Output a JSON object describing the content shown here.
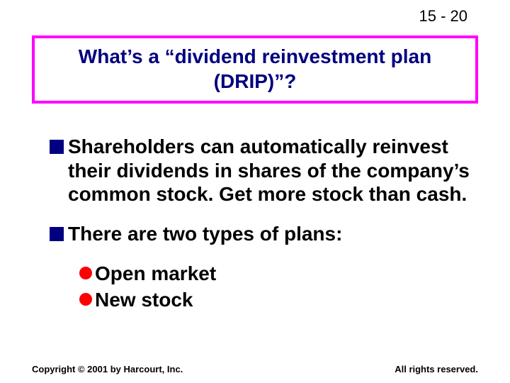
{
  "page_number": "15 - 20",
  "title_box": {
    "border_color": "#ff00ff",
    "text_color": "#000080",
    "line1": "What’s a “dividend reinvestment plan",
    "line2": "(DRIP)”?"
  },
  "bullets": {
    "square_color": "#000080",
    "circle_color": "#ff0000",
    "item1": "Shareholders can automatically reinvest their dividends in shares of the company’s common stock.  Get more stock than cash.",
    "item2": "There are two types of plans:",
    "sub1": "Open market",
    "sub2": "New stock"
  },
  "footer": {
    "left": "Copyright © 2001 by Harcourt, Inc.",
    "right": "All rights reserved."
  }
}
